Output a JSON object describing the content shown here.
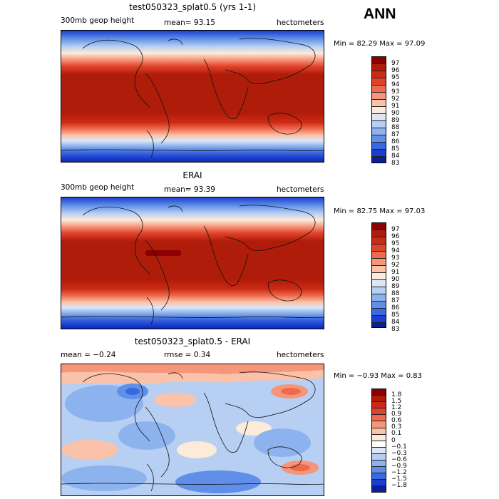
{
  "ann_label": "ANN",
  "panels": [
    {
      "title": "test050323_splat0.5 (yrs 1-1)",
      "left_label": "300mb geop height",
      "mid_label": "mean=  93.15",
      "right_label": "hectometers",
      "minmax": "Min =  82.29 Max =  97.09",
      "cbar_labels": [
        "97",
        "96",
        "95",
        "94",
        "93",
        "92",
        "91",
        "90",
        "89",
        "88",
        "87",
        "86",
        "85",
        "84",
        "83"
      ],
      "cbar_colors": [
        "#8b0000",
        "#b01c0a",
        "#cc2a14",
        "#e0422a",
        "#ee6a4c",
        "#f5957a",
        "#fbc2aa",
        "#fdebd9",
        "#dbe7f7",
        "#b7cff2",
        "#8db3ee",
        "#5f8fe8",
        "#3a68e0",
        "#1c3ed0",
        "#08209a"
      ]
    },
    {
      "title": "ERAI",
      "left_label": "300mb geop height",
      "mid_label": "mean=  93.39",
      "right_label": "hectometers",
      "minmax": "Min =  82.75 Max =  97.03",
      "cbar_labels": [
        "97",
        "96",
        "95",
        "94",
        "93",
        "92",
        "91",
        "90",
        "89",
        "88",
        "87",
        "86",
        "85",
        "84",
        "83"
      ],
      "cbar_colors": [
        "#8b0000",
        "#b01c0a",
        "#cc2a14",
        "#e0422a",
        "#ee6a4c",
        "#f5957a",
        "#fbc2aa",
        "#fdebd9",
        "#dbe7f7",
        "#b7cff2",
        "#8db3ee",
        "#5f8fe8",
        "#3a68e0",
        "#1c3ed0",
        "#08209a"
      ]
    },
    {
      "title": "test050323_splat0.5 - ERAI",
      "left_label": "mean =  −0.24",
      "mid_label": "rmse =   0.34",
      "right_label": "hectometers",
      "minmax": "Min =  −0.93 Max =   0.83",
      "cbar_labels": [
        "1.8",
        "1.5",
        "1.2",
        "0.9",
        "0.6",
        "0.3",
        "0.1",
        "0",
        "−0.1",
        "−0.3",
        "−0.6",
        "−0.9",
        "−1.2",
        "−1.5",
        "−1.8"
      ],
      "cbar_colors": [
        "#8b0000",
        "#b01c0a",
        "#cc2a14",
        "#e0422a",
        "#ee6a4c",
        "#f5957a",
        "#fbc2aa",
        "#fdebd9",
        "#ffffff",
        "#dbe7f7",
        "#b7cff2",
        "#8db3ee",
        "#5f8fe8",
        "#3a68e0",
        "#1c3ed0",
        "#08209a"
      ]
    }
  ]
}
